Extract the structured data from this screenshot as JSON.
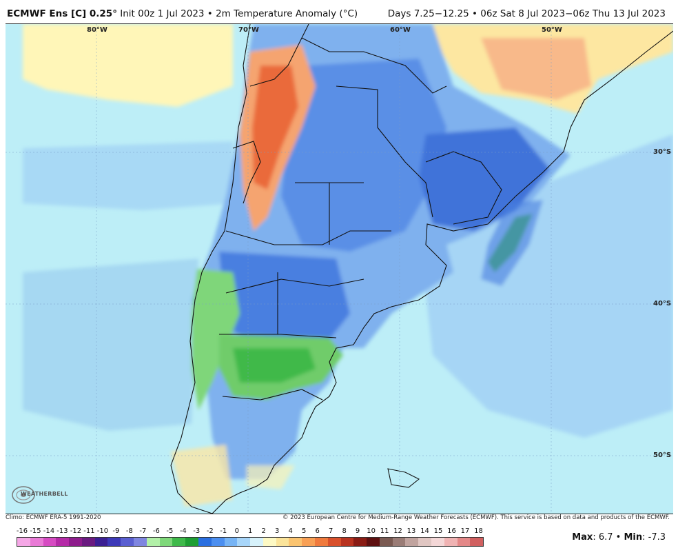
{
  "header": {
    "model": "ECMWF Ens [C] 0.25",
    "degree_symbol": "°",
    "init": "Init 00z 1 Jul 2023",
    "bullet": "•",
    "variable": "2m Temperature Anomaly (°C)",
    "period": "Days 7.25−12.25 • 06z Sat 8 Jul 2023−06z Thu 13 Jul 2023"
  },
  "map": {
    "lon_labels": [
      "80°W",
      "70°W",
      "60°W",
      "50°W"
    ],
    "lat_labels": [
      "30°S",
      "40°S",
      "50°S"
    ]
  },
  "logo": {
    "text": "WEATHERBELL"
  },
  "footer": {
    "climo": "Climo: ECMWF ERA-5 1991-2020",
    "copyright": "© 2023 European Centre for Medium-Range Weather Forecasts (ECMWF). This service is based on data and products of the ECMWF."
  },
  "colorbar": {
    "ticks": [
      "-16",
      "-15",
      "-14",
      "-13",
      "-12",
      "-11",
      "-10",
      "-9",
      "-8",
      "-7",
      "-6",
      "-5",
      "-4",
      "-3",
      "-2",
      "-1",
      "0",
      "1",
      "2",
      "3",
      "4",
      "5",
      "6",
      "7",
      "8",
      "9",
      "10",
      "11",
      "12",
      "13",
      "14",
      "15",
      "16",
      "17",
      "18"
    ],
    "colors": [
      "#f5a7e6",
      "#e97ad6",
      "#d64bc2",
      "#b52aa7",
      "#8e1c8c",
      "#6a1a80",
      "#3b1f93",
      "#3d39b8",
      "#5a5fd1",
      "#7f86e0",
      "#b2f0a8",
      "#7fd87a",
      "#3fb94a",
      "#1e9e33",
      "#2a6fe0",
      "#4c8ff0",
      "#77b4f5",
      "#a8d6fa",
      "#d7f2fb",
      "#fdf9c4",
      "#fbe49a",
      "#fbc470",
      "#f8a055",
      "#f07a3d",
      "#d9502b",
      "#b8331f",
      "#8a1c14",
      "#5e1010",
      "#7a5a52",
      "#9a7c76",
      "#c0a39e",
      "#e0c6c2",
      "#f4d7d7",
      "#f0b3b3",
      "#e48888",
      "#d16060"
    ],
    "max_label": "Max",
    "max_value": "6.7",
    "min_label": "Min",
    "min_value": "-7.3"
  }
}
